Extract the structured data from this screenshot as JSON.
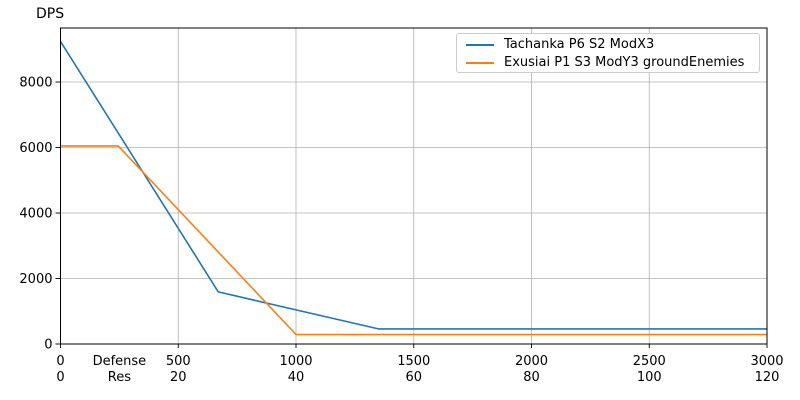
{
  "chart_data": {
    "type": "line",
    "title": "",
    "ylabel": "DPS",
    "grid": true,
    "legend_position": "upper right",
    "x_axis": {
      "xlim": [
        0,
        3000
      ],
      "tick_positions": [
        0,
        500,
        1000,
        1500,
        2000,
        2500,
        3000
      ],
      "rows": [
        {
          "label": "Defense",
          "tick_labels": [
            "0",
            "500",
            "1000",
            "1500",
            "2000",
            "2500",
            "3000"
          ]
        },
        {
          "label": "Res",
          "tick_labels": [
            "0",
            "20",
            "40",
            "60",
            "80",
            "100",
            "120"
          ]
        }
      ]
    },
    "y_axis": {
      "ylim": [
        0,
        9650
      ],
      "ticks": [
        0,
        2000,
        4000,
        6000,
        8000
      ],
      "tick_labels": [
        "0",
        "2000",
        "4000",
        "6000",
        "8000"
      ]
    },
    "series": [
      {
        "name": "Tachanka P6 S2 ModX3",
        "color": "#1f77b4",
        "points": [
          [
            0,
            9240
          ],
          [
            670,
            1590
          ],
          [
            1350,
            460
          ],
          [
            3000,
            460
          ]
        ]
      },
      {
        "name": "Exusiai P1 S3 ModY3 groundEnemies",
        "color": "#ff7f0e",
        "points": [
          [
            0,
            6050
          ],
          [
            245,
            6050
          ],
          [
            1000,
            290
          ],
          [
            3000,
            290
          ]
        ]
      }
    ],
    "style_colors": {
      "grid": "#b0b0b0",
      "spine": "#000000",
      "text": "#000000"
    }
  }
}
